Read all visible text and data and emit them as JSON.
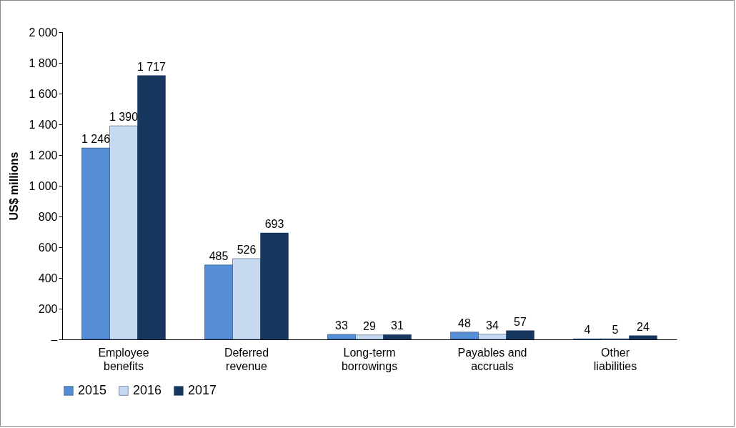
{
  "chart_data": {
    "type": "bar",
    "ylabel": "US$ millions",
    "categories": [
      "Employee benefits",
      "Deferred revenue",
      "Long-term borrowings",
      "Payables and accruals",
      "Other liabilities"
    ],
    "series": [
      {
        "name": "2015",
        "color": "#558ed5",
        "values": [
          1246,
          485,
          33,
          48,
          4
        ],
        "value_labels": [
          "1 246",
          "485",
          "33",
          "48",
          "4"
        ]
      },
      {
        "name": "2016",
        "color": "#c6d9f1",
        "values": [
          1390,
          526,
          29,
          34,
          5
        ],
        "value_labels": [
          "1 390",
          "526",
          "29",
          "34",
          "5"
        ]
      },
      {
        "name": "2017",
        "color": "#17375e",
        "values": [
          1717,
          693,
          31,
          57,
          24
        ],
        "value_labels": [
          "1 717",
          "693",
          "31",
          "57",
          "24"
        ]
      }
    ],
    "ylim": [
      0,
      2000
    ],
    "yticks": [
      {
        "value": 0,
        "label": "–"
      },
      200,
      400,
      600,
      800,
      {
        "value": 1000,
        "label": "1 000"
      },
      {
        "value": 1200,
        "label": "1 200"
      },
      {
        "value": 1400,
        "label": "1 400"
      },
      {
        "value": 1600,
        "label": "1 600"
      },
      {
        "value": 1800,
        "label": "1 800"
      },
      {
        "value": 2000,
        "label": "2 000"
      }
    ],
    "grid": false,
    "legend": "bottom"
  }
}
